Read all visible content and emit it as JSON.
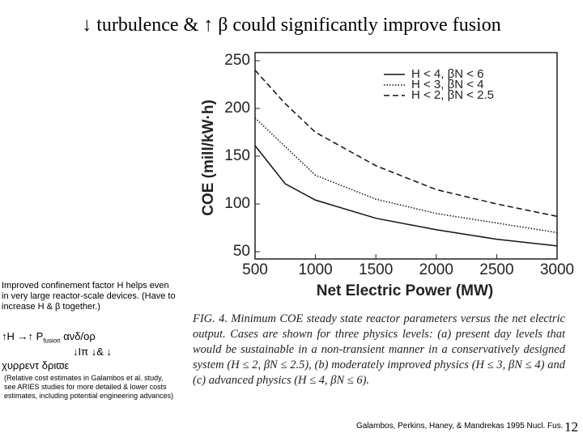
{
  "slide": {
    "title": "↓ turbulence & ↑ β could significantly improve fusion",
    "notes": {
      "confinement": "Improved confinement factor H helps even in very large reactor-scale devices. (Have to increase H & β together.)",
      "line1": "↑H →↑ P",
      "line1_sub": "fusion",
      "line1_tail": "ανδ/ορ",
      "line2": "↓Iπ ↓& ↓",
      "line3": "χυρρεντ δριϖε",
      "cost": "(Relative cost estimates in Galambos et al. study, see ARIES studies for more detailed & lower costs estimates, including potential engineering advances)"
    },
    "caption": "FIG. 4. Minimum COE steady state reactor parameters versus the net electric output. Cases are shown for three physics levels: (a) present day levels that would be sustainable in a non-transient manner in a conservatively designed system (H ≤ 2, βN ≤ 2.5), (b) moderately improved physics (H ≤ 3, βN ≤ 4) and (c) advanced physics (H ≤ 4, βN ≤ 6).",
    "citation": "Galambos, Perkins, Haney, & Mandrekas 1995 Nucl. Fus.",
    "page": "12"
  },
  "chart_data": {
    "type": "line",
    "x_label": "Net Electric Power (MW)",
    "y_label": "COE (mill/kW·h)",
    "x": [
      500,
      750,
      1000,
      1500,
      2000,
      2500,
      3000
    ],
    "series": [
      {
        "name": "H < 4, βN < 6",
        "color": "#111111",
        "dash": "solid",
        "values": [
          161,
          121,
          104,
          85,
          73,
          63,
          56
        ]
      },
      {
        "name": "H < 3, βN < 4",
        "color": "#111111",
        "dash": "dotted",
        "values": [
          190,
          160,
          130,
          105,
          90,
          80,
          70
        ]
      },
      {
        "name": "H < 2, βN < 2.5",
        "color": "#111111",
        "dash": "dashed",
        "values": [
          240,
          205,
          175,
          140,
          115,
          100,
          87
        ]
      }
    ],
    "xlim": [
      500,
      3000
    ],
    "ylim": [
      50,
      250
    ],
    "xticks": [
      500,
      1000,
      1500,
      2000,
      2500,
      3000
    ],
    "yticks": [
      50,
      100,
      150,
      200,
      250
    ]
  }
}
